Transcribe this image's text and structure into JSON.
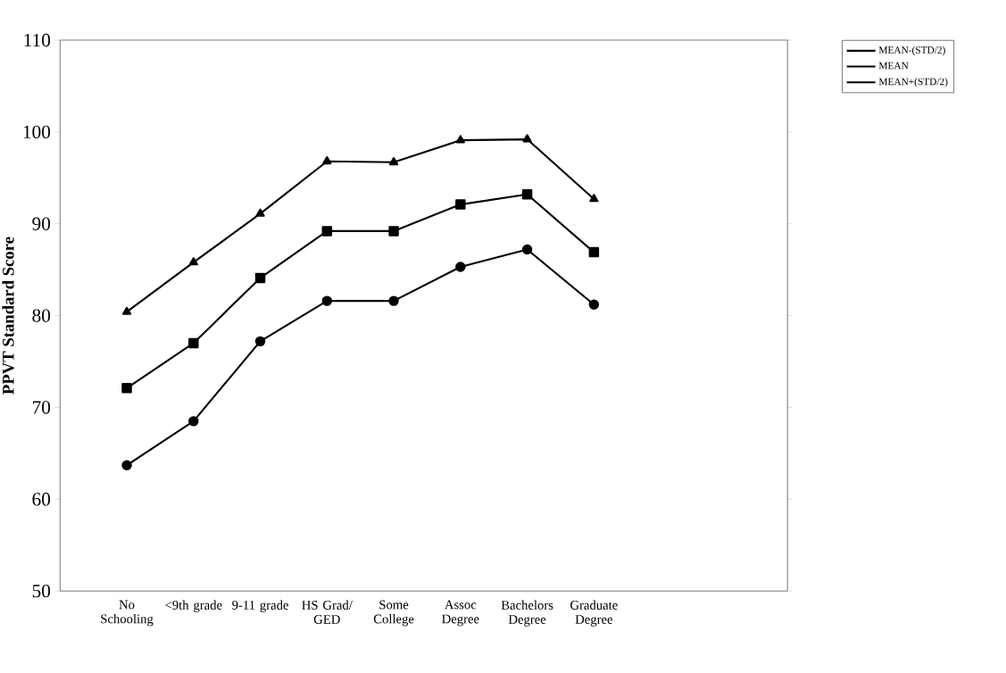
{
  "chart_data": {
    "type": "line",
    "ylabel": "PPVT Standard Score",
    "categories": [
      "No Schooling",
      "<9th grade",
      "9-11 grade",
      "HS Grad/ GED",
      "Some College",
      "Assoc Degree",
      "Bachelors Degree",
      "Graduate Degree"
    ],
    "series": [
      {
        "name": "MEAN-(STD/2)",
        "color": "#000000",
        "marker": "circle",
        "values": [
          63.7,
          68.5,
          77.2,
          81.6,
          81.6,
          85.3,
          87.2,
          81.2
        ]
      },
      {
        "name": "MEAN",
        "color": "#000000",
        "marker": "square",
        "values": [
          72.1,
          77.0,
          84.1,
          89.2,
          89.2,
          92.1,
          93.2,
          86.9
        ]
      },
      {
        "name": "MEAN+(STD/2)",
        "color": "#000000",
        "marker": "triangle",
        "values": [
          80.4,
          85.8,
          91.1,
          96.8,
          96.7,
          99.1,
          99.2,
          92.7
        ]
      }
    ],
    "ylim": [
      50,
      110
    ],
    "yticks": [
      50,
      60,
      70,
      80,
      90,
      100,
      110
    ],
    "grid": false,
    "legend": "top right",
    "line_style": "solid"
  }
}
